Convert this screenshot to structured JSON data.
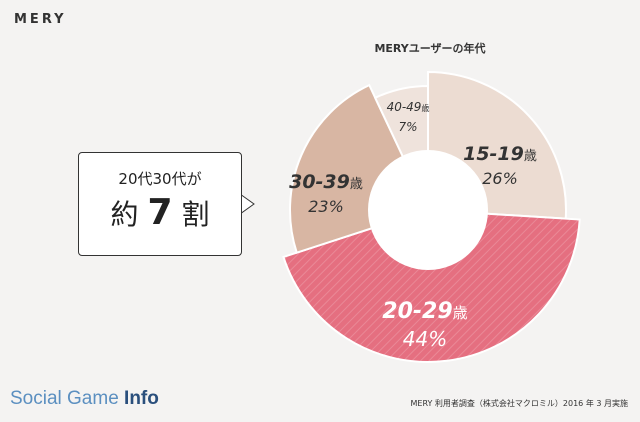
{
  "header": {
    "logo": "MERY"
  },
  "chart_data": {
    "type": "pie",
    "title": "MERYユーザーの年代",
    "slices": [
      {
        "label": "15-19",
        "suffix": "歳",
        "value": 26,
        "display": "26%",
        "color": "#ecdcd2"
      },
      {
        "label": "20-29",
        "suffix": "歳",
        "value": 44,
        "display": "44%",
        "color": "#e56f80"
      },
      {
        "label": "30-39",
        "suffix": "歳",
        "value": 23,
        "display": "23%",
        "color": "#d8b6a3"
      },
      {
        "label": "40-49",
        "suffix": "歳",
        "value": 7,
        "display": "7%",
        "color": "#efe3dc"
      }
    ]
  },
  "callout": {
    "line1": "20代30代が",
    "prefix": "約",
    "number": "7",
    "suffix": "割"
  },
  "footer": {
    "brand_a": "Social Game ",
    "brand_b": "Info",
    "note": "MERY 利用者調査（株式会社マクロミル）2016 年 3 月実施"
  }
}
